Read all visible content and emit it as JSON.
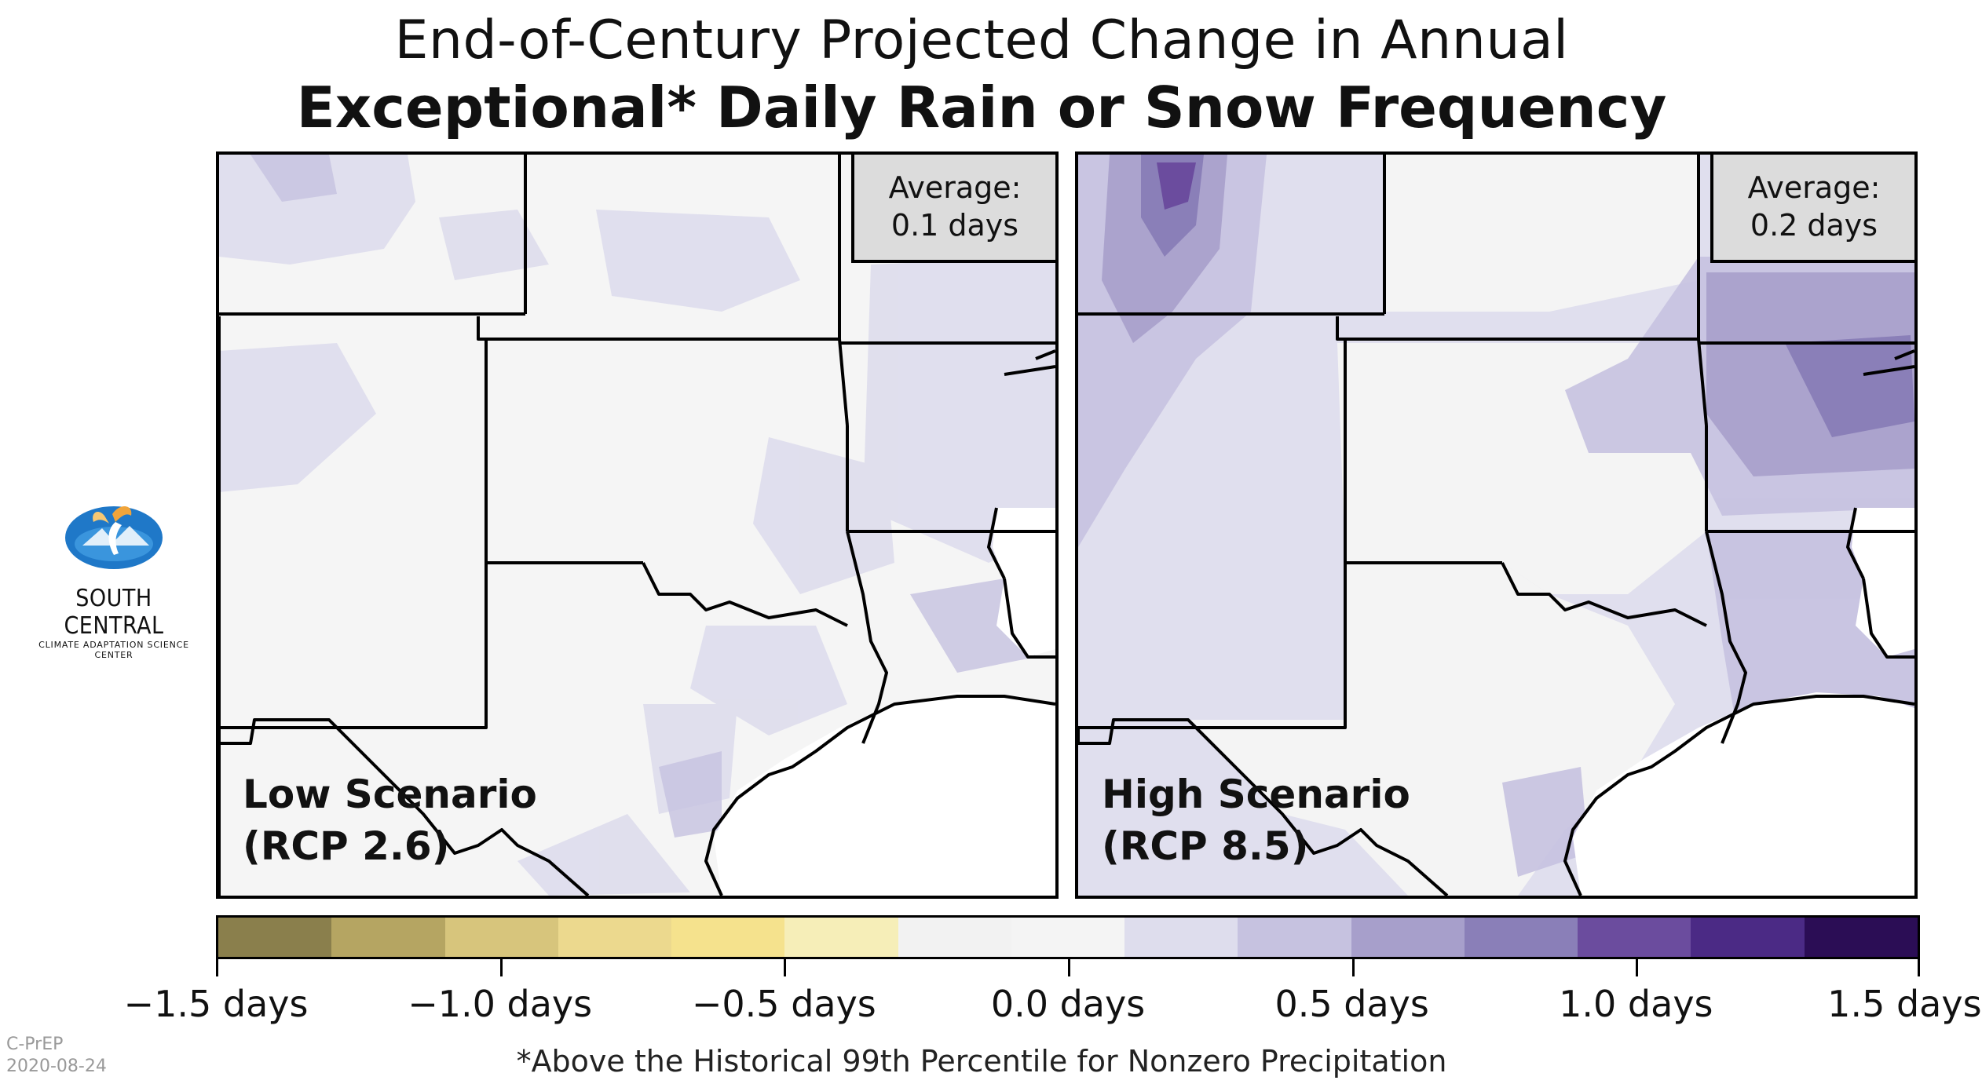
{
  "title": {
    "line1": "End-of-Century Projected Change in Annual",
    "line2": "Exceptional* Daily Rain or Snow Frequency"
  },
  "panels": [
    {
      "scenario_line1": "Low Scenario",
      "scenario_line2": "(RCP 2.6)",
      "average_label": "Average:",
      "average_value": "0.1 days"
    },
    {
      "scenario_line1": "High Scenario",
      "scenario_line2": "(RCP 8.5)",
      "average_label": "Average:",
      "average_value": "0.2 days"
    }
  ],
  "colorbar": {
    "colors": [
      "#8a7f4c",
      "#b5a562",
      "#d7c57c",
      "#ecd98e",
      "#f5e28d",
      "#f6eeb8",
      "#f2f2f2",
      "#f4f4f4",
      "#dedded",
      "#c6c2e0",
      "#a79fcb",
      "#8a7fb8",
      "#6b4c9e",
      "#4b2a85",
      "#2b0d55"
    ],
    "ticks": [
      "−1.5 days",
      "−1.0 days",
      "−0.5 days",
      "0.0 days",
      "0.5 days",
      "1.0 days",
      "1.5 days"
    ]
  },
  "logo": {
    "name": "SOUTH CENTRAL",
    "subtitle": "CLIMATE ADAPTATION SCIENCE CENTER"
  },
  "footnote": "*Above the Historical 99th Percentile for Nonzero Precipitation",
  "credit": {
    "line1": "C-PrEP",
    "line2": "2020-08-24"
  }
}
